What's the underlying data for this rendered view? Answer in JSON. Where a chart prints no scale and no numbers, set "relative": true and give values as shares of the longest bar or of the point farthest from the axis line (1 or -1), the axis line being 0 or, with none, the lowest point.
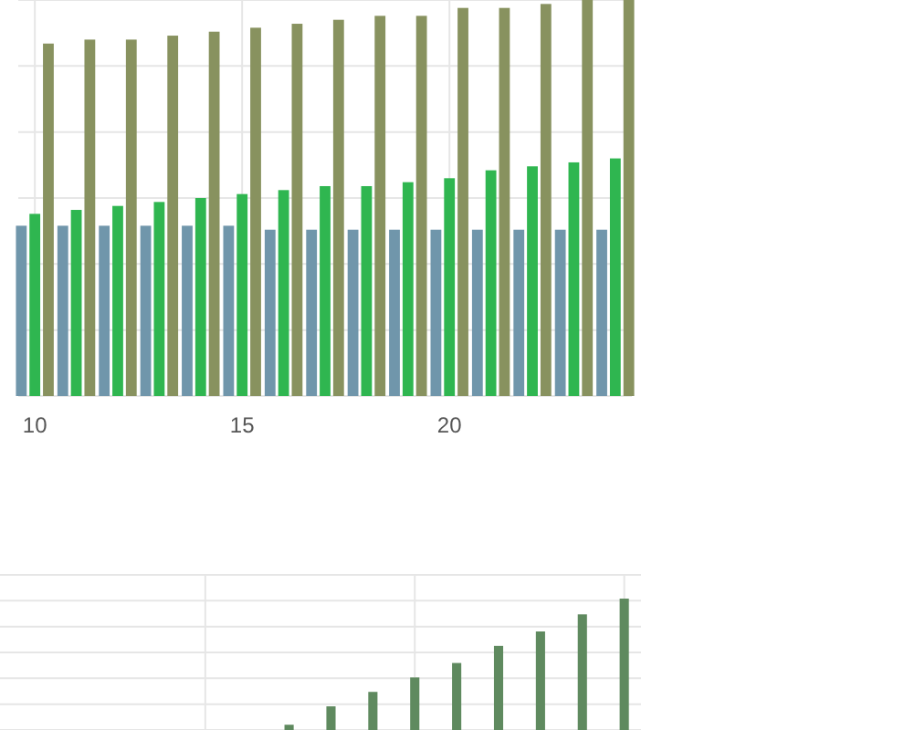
{
  "chart_data": [
    {
      "type": "bar",
      "relative": true,
      "grid": true,
      "x": [
        10,
        11,
        12,
        13,
        14,
        15,
        16,
        17,
        18,
        19,
        20,
        21,
        22,
        23,
        24
      ],
      "xlim": [
        9.6,
        24.4
      ],
      "xticks": [
        10,
        15,
        20
      ],
      "tick_labels": "x",
      "series": [
        {
          "color": "#7096ab",
          "values": [
            0.43,
            0.43,
            0.43,
            0.43,
            0.43,
            0.43,
            0.42,
            0.42,
            0.42,
            0.42,
            0.42,
            0.42,
            0.42,
            0.42,
            0.42
          ]
        },
        {
          "color": "#2fb650",
          "values": [
            0.46,
            0.47,
            0.48,
            0.49,
            0.5,
            0.51,
            0.52,
            0.53,
            0.53,
            0.54,
            0.55,
            0.57,
            0.58,
            0.59,
            0.6
          ]
        },
        {
          "color": "#88925f",
          "values": [
            0.89,
            0.9,
            0.9,
            0.91,
            0.92,
            0.93,
            0.94,
            0.95,
            0.96,
            0.96,
            0.98,
            0.98,
            0.99,
            1.0,
            1.0
          ]
        }
      ]
    },
    {
      "type": "bar",
      "relative": true,
      "grid": true,
      "categories": [
        null,
        null,
        null,
        null,
        null,
        null,
        null,
        null,
        null
      ],
      "tick_labels": false,
      "series": [
        {
          "color": "#5f8a5f",
          "values": [
            0.04,
            0.18,
            0.29,
            0.4,
            0.51,
            0.64,
            0.75,
            0.88,
            1.0
          ]
        }
      ]
    }
  ]
}
